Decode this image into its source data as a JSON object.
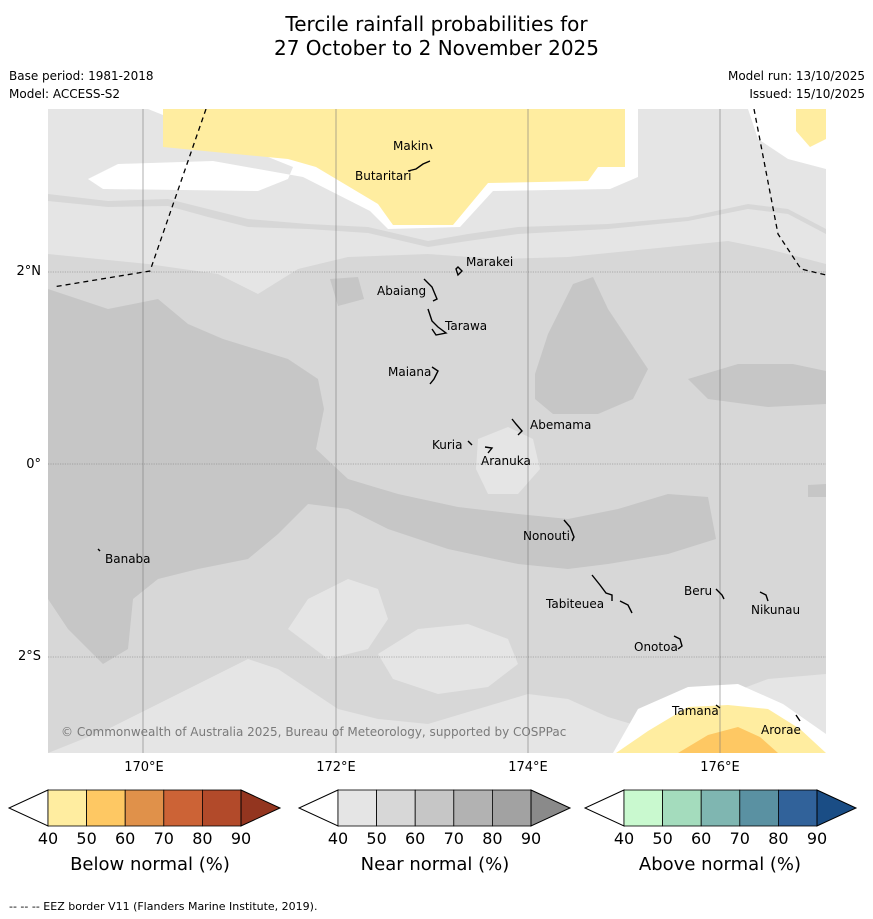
{
  "title_line1": "Tercile rainfall probabilities for",
  "title_line2": "27 October to 2 November 2025",
  "base_period": "Base period: 1981-2018",
  "model": "Model: ACCESS-S2",
  "model_run": "Model run: 13/10/2025",
  "issued": "Issued: 15/10/2025",
  "copyright": "© Commonwealth of Australia 2025, Bureau of Meteorology, supported by COSPPac",
  "footer": "--  --  -- EEZ border V11 (Flanders Marine Institute, 2019).",
  "lat_labels": [
    "2°N",
    "0°",
    "2°S"
  ],
  "lon_labels": [
    "170°E",
    "172°E",
    "174°E",
    "176°E"
  ],
  "places": [
    "Makin",
    "Butaritari",
    "Marakei",
    "Abaiang",
    "Tarawa",
    "Maiana",
    "Abemama",
    "Kuria",
    "Aranuka",
    "Nonouti",
    "Banaba",
    "Beru",
    "Nikunau",
    "Tabiteuea",
    "Onotoa",
    "Tamana",
    "Arorae"
  ],
  "colorbars": [
    {
      "title": "Below normal (%)",
      "ticks": [
        "40",
        "50",
        "60",
        "70",
        "80",
        "90"
      ],
      "colors": [
        "#ffeda0",
        "#fec863",
        "#e0914a",
        "#cc6336",
        "#b24a2a",
        "#93351f"
      ]
    },
    {
      "title": "Near normal (%)",
      "ticks": [
        "40",
        "50",
        "60",
        "70",
        "80",
        "90"
      ],
      "colors": [
        "#e5e5e5",
        "#d7d7d7",
        "#c6c6c6",
        "#b2b2b2",
        "#a2a2a2",
        "#8a8a8a"
      ]
    },
    {
      "title": "Above normal (%)",
      "ticks": [
        "40",
        "50",
        "60",
        "70",
        "80",
        "90"
      ],
      "colors": [
        "#c9f9cf",
        "#a4dcbd",
        "#7fb6b1",
        "#5a91a2",
        "#31629a",
        "#1a4d85"
      ]
    }
  ]
}
